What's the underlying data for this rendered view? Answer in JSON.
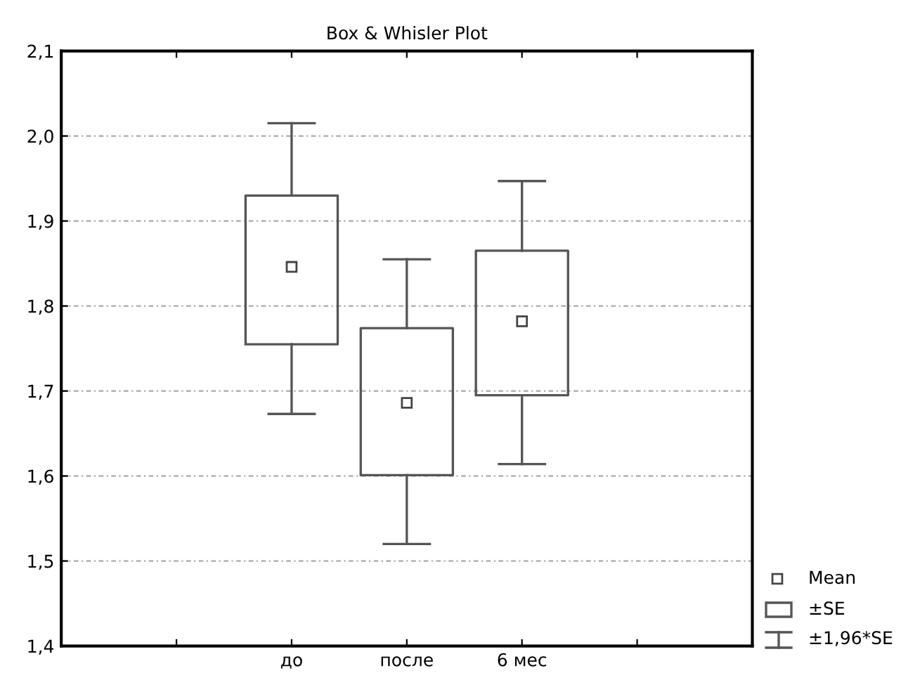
{
  "chart_data": {
    "type": "box",
    "title": "Box & Whisler Plot",
    "categories": [
      null,
      "до",
      "после",
      "6 мес",
      null
    ],
    "boxes": [
      null,
      {
        "low": 1.673,
        "q1": 1.755,
        "mean": 1.846,
        "q3": 1.93,
        "high": 2.015
      },
      {
        "low": 1.52,
        "q1": 1.601,
        "mean": 1.686,
        "q3": 1.774,
        "high": 1.855
      },
      {
        "low": 1.614,
        "q1": 1.695,
        "mean": 1.782,
        "q3": 1.865,
        "high": 1.947
      },
      null
    ],
    "ylim": [
      1.4,
      2.1
    ],
    "yticks": [
      {
        "value": 1.4,
        "label": "1,4"
      },
      {
        "value": 1.5,
        "label": "1,5"
      },
      {
        "value": 1.6,
        "label": "1,6"
      },
      {
        "value": 1.7,
        "label": "1,7"
      },
      {
        "value": 1.8,
        "label": "1,8"
      },
      {
        "value": 1.9,
        "label": "1,9"
      },
      {
        "value": 2.0,
        "label": "2,0"
      },
      {
        "value": 2.1,
        "label": "2,1"
      }
    ],
    "grid": "y",
    "marker": "square",
    "annotations": [
      "Mean",
      "±SE",
      "±1,96*SE"
    ]
  }
}
